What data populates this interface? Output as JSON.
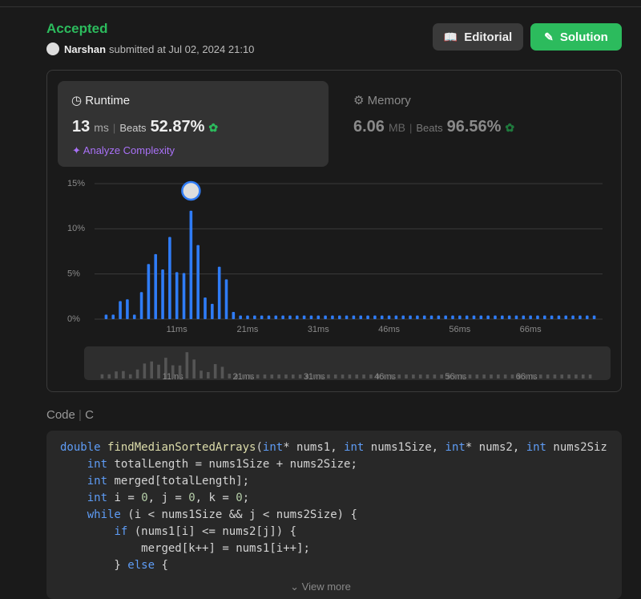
{
  "header": {
    "status": "Accepted",
    "user": "Narshan",
    "submitted": "submitted at Jul 02, 2024 21:10"
  },
  "buttons": {
    "editorial": "Editorial",
    "solution": "Solution"
  },
  "runtime": {
    "label": "Runtime",
    "value": "13",
    "unit": "ms",
    "beats_label": "Beats",
    "beats": "52.87%",
    "analyze": "Analyze Complexity"
  },
  "memory": {
    "label": "Memory",
    "value": "6.06",
    "unit": "MB",
    "beats_label": "Beats",
    "beats": "96.56%"
  },
  "chart_data": {
    "type": "bar",
    "color": "#2f7cf6",
    "grid": true,
    "categories": [
      null,
      null,
      null,
      null,
      null,
      null,
      null,
      null,
      null,
      null,
      "11ms",
      null,
      null,
      null,
      null,
      null,
      null,
      null,
      null,
      null,
      "21ms",
      null,
      null,
      null,
      null,
      null,
      null,
      null,
      null,
      null,
      "31ms",
      null,
      null,
      null,
      null,
      null,
      null,
      null,
      null,
      null,
      "46ms",
      null,
      null,
      null,
      null,
      null,
      null,
      null,
      null,
      null,
      "56ms",
      null,
      null,
      null,
      null,
      null,
      null,
      null,
      null,
      null,
      "66ms",
      null,
      null,
      null,
      null,
      null,
      null,
      null,
      null,
      null
    ],
    "values": [
      0.5,
      0.5,
      2.0,
      2.2,
      0.5,
      3.0,
      6.1,
      7.2,
      5.5,
      9.1,
      5.2,
      5.1,
      12.0,
      8.2,
      2.4,
      1.7,
      5.8,
      4.4,
      0.8,
      0.4,
      0.4,
      0.4,
      0.4,
      0.4,
      0.4,
      0.4,
      0.4,
      0.4,
      0.4,
      0.4,
      0.4,
      0.4,
      0.4,
      0.4,
      0.4,
      0.4,
      0.4,
      0.4,
      0.4,
      0.4,
      0.4,
      0.4,
      0.4,
      0.4,
      0.4,
      0.4,
      0.4,
      0.4,
      0.4,
      0.4,
      0.4,
      0.4,
      0.4,
      0.4,
      0.4,
      0.4,
      0.4,
      0.4,
      0.4,
      0.4,
      0.4,
      0.4,
      0.4,
      0.4,
      0.4,
      0.4,
      0.4,
      0.4,
      0.4,
      0.4
    ],
    "ylim": [
      0,
      15
    ],
    "yticks": [
      {
        "value": 0,
        "label": "0%"
      },
      {
        "value": 5,
        "label": "5%"
      },
      {
        "value": 10,
        "label": "10%"
      },
      {
        "value": 15,
        "label": "15%"
      }
    ]
  },
  "code": {
    "label": "Code",
    "language": "C",
    "more": "View more",
    "lines": [
      "double findMedianSortedArrays(int* nums1, int nums1Size, int* nums2, int nums2Siz",
      "    int totalLength = nums1Size + nums2Size;",
      "    int merged[totalLength];",
      "    int i = 0, j = 0, k = 0;",
      "    while (i < nums1Size && j < nums2Size) {",
      "        if (nums1[i] <= nums2[j]) {",
      "            merged[k++] = nums1[i++];",
      "        } else {"
    ]
  }
}
